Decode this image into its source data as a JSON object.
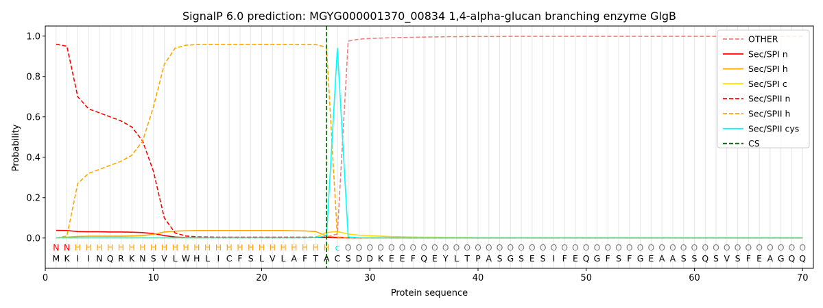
{
  "chart_data": {
    "type": "line",
    "title": "SignalP 6.0 prediction: MGYG000001370_00834 1,4-alpha-glucan branching enzyme GlgB",
    "xlabel": "Protein sequence",
    "ylabel": "Probability",
    "xlim": [
      0,
      71
    ],
    "ylim": [
      -0.15,
      1.05
    ],
    "x_ticks": [
      0,
      10,
      20,
      30,
      40,
      50,
      60,
      70
    ],
    "y_ticks": [
      0.0,
      0.2,
      0.4,
      0.6,
      0.8,
      1.0
    ],
    "y_tick_labels": [
      "0.0",
      "0.2",
      "0.4",
      "0.6",
      "0.8",
      "1.0"
    ],
    "grid": "vertical lines at each residue",
    "legend_position": "top-right",
    "sequence": [
      "M",
      "K",
      "I",
      "I",
      "N",
      "Q",
      "R",
      "K",
      "N",
      "S",
      "V",
      "L",
      "W",
      "H",
      "L",
      "I",
      "C",
      "F",
      "S",
      "L",
      "V",
      "L",
      "A",
      "F",
      "T",
      "A",
      "C",
      "S",
      "D",
      "D",
      "K",
      "E",
      "E",
      "F",
      "Q",
      "E",
      "Y",
      "L",
      "T",
      "P",
      "A",
      "S",
      "G",
      "S",
      "E",
      "S",
      "I",
      "F",
      "E",
      "Q",
      "G",
      "F",
      "S",
      "F",
      "G",
      "E",
      "A",
      "A",
      "S",
      "S",
      "Q",
      "S",
      "V",
      "S",
      "F",
      "E",
      "A",
      "G",
      "Q",
      "Q"
    ],
    "region_labels": [
      "N",
      "N",
      "H",
      "H",
      "H",
      "H",
      "H",
      "H",
      "H",
      "H",
      "H",
      "H",
      "H",
      "H",
      "H",
      "H",
      "H",
      "H",
      "H",
      "H",
      "H",
      "H",
      "H",
      "H",
      "H",
      "H",
      "c",
      "O",
      "O",
      "O",
      "O",
      "O",
      "O",
      "O",
      "O",
      "O",
      "O",
      "O",
      "O",
      "O",
      "O",
      "O",
      "O",
      "O",
      "O",
      "O",
      "O",
      "O",
      "O",
      "O",
      "O",
      "O",
      "O",
      "O",
      "O",
      "O",
      "O",
      "O",
      "O",
      "O",
      "O",
      "O",
      "O",
      "O",
      "O",
      "O",
      "O",
      "O",
      "O",
      "O"
    ],
    "region_colors": {
      "N": "#ff0000",
      "H": "#ffa500",
      "c": "#00e5e5",
      "O": "#808080"
    },
    "cleavage_site": 26,
    "series": [
      {
        "name": "OTHER",
        "color": "#f08080",
        "dash": true,
        "values": [
          0.001,
          0.001,
          0.001,
          0.001,
          0.001,
          0.001,
          0.001,
          0.001,
          0.001,
          0.001,
          0.001,
          0.001,
          0.001,
          0.001,
          0.001,
          0.001,
          0.001,
          0.001,
          0.001,
          0.001,
          0.001,
          0.001,
          0.001,
          0.001,
          0.002,
          0.005,
          0.02,
          0.975,
          0.985,
          0.988,
          0.99,
          0.992,
          0.993,
          0.994,
          0.995,
          0.996,
          0.997,
          0.997,
          0.998,
          0.998,
          0.998,
          0.998,
          0.999,
          0.999,
          0.999,
          0.999,
          0.999,
          0.999,
          0.999,
          0.999,
          0.999,
          0.999,
          0.999,
          0.999,
          0.999,
          0.999,
          0.999,
          0.999,
          0.999,
          0.999,
          0.999,
          0.999,
          0.999,
          0.999,
          0.999,
          0.999,
          0.999,
          0.999,
          0.999,
          0.999
        ]
      },
      {
        "name": "Sec/SPI n",
        "color": "#ff0000",
        "dash": false,
        "values": [
          0.038,
          0.037,
          0.032,
          0.031,
          0.031,
          0.03,
          0.03,
          0.029,
          0.027,
          0.022,
          0.012,
          0.005,
          0.003,
          0.002,
          0.002,
          0.002,
          0.002,
          0.002,
          0.002,
          0.002,
          0.002,
          0.002,
          0.002,
          0.002,
          0.002,
          0.002,
          0.001,
          0.001,
          0.001,
          0.001,
          0.001,
          0.001,
          0.001,
          0.001,
          0.001,
          0.001,
          0.001,
          0.001,
          0.001,
          0.001,
          0.001,
          0.001,
          0.001,
          0.001,
          0.001,
          0.001,
          0.001,
          0.001,
          0.001,
          0.001,
          0.001,
          0.001,
          0.001,
          0.001,
          0.001,
          0.001,
          0.001,
          0.001,
          0.001,
          0.001,
          0.001,
          0.001,
          0.001,
          0.001,
          0.001,
          0.001,
          0.001,
          0.001,
          0.001,
          0.001
        ]
      },
      {
        "name": "Sec/SPI h",
        "color": "#ffa500",
        "dash": false,
        "values": [
          0.001,
          0.004,
          0.008,
          0.009,
          0.009,
          0.009,
          0.009,
          0.01,
          0.012,
          0.018,
          0.03,
          0.034,
          0.036,
          0.037,
          0.037,
          0.037,
          0.037,
          0.037,
          0.037,
          0.037,
          0.037,
          0.037,
          0.036,
          0.035,
          0.032,
          0.01,
          0.003,
          0.001,
          0.001,
          0.001,
          0.001,
          0.001,
          0.001,
          0.001,
          0.001,
          0.001,
          0.001,
          0.001,
          0.001,
          0.001,
          0.001,
          0.001,
          0.001,
          0.001,
          0.001,
          0.001,
          0.001,
          0.001,
          0.001,
          0.001,
          0.001,
          0.001,
          0.001,
          0.001,
          0.001,
          0.001,
          0.001,
          0.001,
          0.001,
          0.001,
          0.001,
          0.001,
          0.001,
          0.001,
          0.001,
          0.001,
          0.001,
          0.001,
          0.001,
          0.001
        ]
      },
      {
        "name": "Sec/SPI c",
        "color": "#ffd700",
        "dash": false,
        "values": [
          0.001,
          0.001,
          0.001,
          0.001,
          0.001,
          0.001,
          0.001,
          0.001,
          0.001,
          0.001,
          0.001,
          0.001,
          0.001,
          0.001,
          0.001,
          0.001,
          0.001,
          0.001,
          0.001,
          0.001,
          0.001,
          0.001,
          0.001,
          0.002,
          0.004,
          0.028,
          0.032,
          0.02,
          0.014,
          0.011,
          0.009,
          0.007,
          0.006,
          0.005,
          0.004,
          0.004,
          0.003,
          0.003,
          0.003,
          0.002,
          0.002,
          0.002,
          0.002,
          0.002,
          0.002,
          0.002,
          0.002,
          0.002,
          0.002,
          0.002,
          0.002,
          0.002,
          0.002,
          0.002,
          0.002,
          0.002,
          0.002,
          0.002,
          0.002,
          0.002,
          0.002,
          0.002,
          0.002,
          0.002,
          0.002,
          0.002,
          0.002,
          0.002,
          0.002,
          0.002
        ]
      },
      {
        "name": "Sec/SPII n",
        "color": "#ff0000",
        "dash": true,
        "values": [
          0.96,
          0.95,
          0.7,
          0.64,
          0.62,
          0.6,
          0.58,
          0.55,
          0.48,
          0.33,
          0.1,
          0.025,
          0.01,
          0.006,
          0.005,
          0.004,
          0.004,
          0.004,
          0.004,
          0.004,
          0.004,
          0.004,
          0.004,
          0.004,
          0.004,
          0.004,
          0.002,
          0.001,
          0.001,
          0.001,
          0.001,
          0.001,
          0.001,
          0.001,
          0.001,
          0.001,
          0.001,
          0.001,
          0.001,
          0.001,
          0.001,
          0.001,
          0.001,
          0.001,
          0.001,
          0.001,
          0.001,
          0.001,
          0.001,
          0.001,
          0.001,
          0.001,
          0.001,
          0.001,
          0.001,
          0.001,
          0.001,
          0.001,
          0.001,
          0.001,
          0.001,
          0.001,
          0.001,
          0.001,
          0.001,
          0.001,
          0.001,
          0.001,
          0.001,
          0.001
        ]
      },
      {
        "name": "Sec/SPII h",
        "color": "#ffa500",
        "dash": true,
        "values": [
          0.0,
          0.01,
          0.27,
          0.32,
          0.34,
          0.36,
          0.38,
          0.41,
          0.48,
          0.65,
          0.86,
          0.94,
          0.955,
          0.958,
          0.959,
          0.959,
          0.959,
          0.959,
          0.959,
          0.959,
          0.959,
          0.959,
          0.958,
          0.958,
          0.958,
          0.945,
          0.005,
          0.002,
          0.001,
          0.001,
          0.001,
          0.001,
          0.001,
          0.001,
          0.001,
          0.001,
          0.001,
          0.001,
          0.001,
          0.001,
          0.001,
          0.001,
          0.001,
          0.001,
          0.001,
          0.001,
          0.001,
          0.001,
          0.001,
          0.001,
          0.001,
          0.001,
          0.001,
          0.001,
          0.001,
          0.001,
          0.001,
          0.001,
          0.001,
          0.001,
          0.001,
          0.001,
          0.001,
          0.001,
          0.001,
          0.001,
          0.001,
          0.001,
          0.001,
          0.001
        ]
      },
      {
        "name": "Sec/SPII cys",
        "color": "#00ffff",
        "dash": false,
        "values": [
          0.001,
          0.001,
          0.001,
          0.001,
          0.001,
          0.001,
          0.001,
          0.001,
          0.001,
          0.001,
          0.001,
          0.001,
          0.001,
          0.001,
          0.001,
          0.001,
          0.001,
          0.001,
          0.001,
          0.001,
          0.001,
          0.001,
          0.001,
          0.001,
          0.002,
          0.01,
          0.94,
          0.005,
          0.002,
          0.001,
          0.001,
          0.001,
          0.001,
          0.001,
          0.001,
          0.001,
          0.001,
          0.001,
          0.001,
          0.001,
          0.001,
          0.001,
          0.001,
          0.001,
          0.001,
          0.001,
          0.001,
          0.001,
          0.001,
          0.001,
          0.001,
          0.001,
          0.001,
          0.001,
          0.001,
          0.001,
          0.001,
          0.001,
          0.001,
          0.001,
          0.001,
          0.001,
          0.001,
          0.001,
          0.001,
          0.001,
          0.001,
          0.001,
          0.001,
          0.001
        ]
      }
    ],
    "cs_legend": {
      "name": "CS",
      "color": "#006400"
    }
  }
}
